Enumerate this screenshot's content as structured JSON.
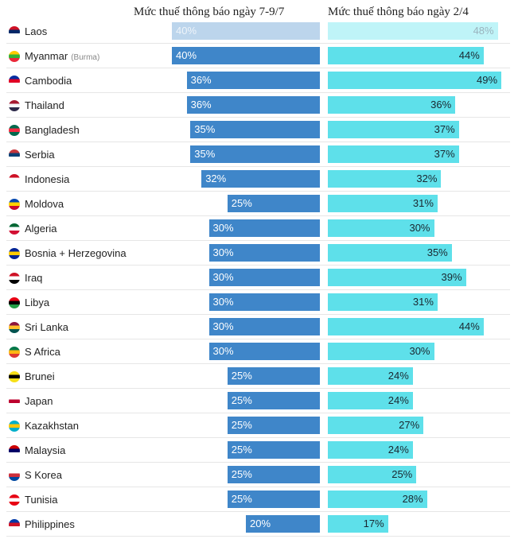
{
  "headers": {
    "left": "Mức thuế thông báo ngày 7-9/7",
    "right": "Mức thuế thông báo ngày 2/4"
  },
  "chart_data": {
    "type": "bar",
    "series": [
      {
        "name": "Mức thuế thông báo ngày 7-9/7",
        "values": [
          40,
          40,
          36,
          36,
          35,
          35,
          32,
          25,
          30,
          30,
          30,
          30,
          30,
          30,
          25,
          25,
          25,
          25,
          25,
          25,
          20
        ]
      },
      {
        "name": "Mức thuế thông báo ngày 2/4",
        "values": [
          48,
          44,
          49,
          36,
          37,
          37,
          32,
          31,
          30,
          35,
          39,
          31,
          44,
          30,
          24,
          24,
          27,
          24,
          25,
          28,
          17
        ]
      }
    ],
    "categories": [
      "Laos",
      "Myanmar",
      "Cambodia",
      "Thailand",
      "Bangladesh",
      "Serbia",
      "Indonesia",
      "Moldova",
      "Algeria",
      "Bosnia + Herzegovina",
      "Iraq",
      "Libya",
      "Sri Lanka",
      "S Africa",
      "Brunei",
      "Japan",
      "Kazakhstan",
      "Malaysia",
      "S Korea",
      "Tunisia",
      "Philippines"
    ],
    "category_notes": {
      "Myanmar": "(Burma)"
    },
    "unit": "%",
    "highlighted_row": "Laos",
    "colors": {
      "left": "#3f86c9",
      "right": "#5ee0ea",
      "left_faded": "#bcd5ec",
      "right_faded": "#bff4f8"
    },
    "flag_colors": {
      "Laos": [
        "#ce1126",
        "#002868",
        "#ffffff"
      ],
      "Myanmar": [
        "#fecb00",
        "#34b233",
        "#ea2839"
      ],
      "Cambodia": [
        "#032ea1",
        "#e00025",
        "#ffffff"
      ],
      "Thailand": [
        "#a51931",
        "#f4f5f8",
        "#2d2a4a"
      ],
      "Bangladesh": [
        "#006a4e",
        "#f42a41",
        "#006a4e"
      ],
      "Serbia": [
        "#c6363c",
        "#0c4076",
        "#ffffff"
      ],
      "Indonesia": [
        "#ce1126",
        "#ffffff",
        "#ffffff"
      ],
      "Moldova": [
        "#0046ae",
        "#ffd200",
        "#cc092f"
      ],
      "Algeria": [
        "#006633",
        "#ffffff",
        "#d21034"
      ],
      "Bosnia + Herzegovina": [
        "#002395",
        "#fecb00",
        "#002395"
      ],
      "Iraq": [
        "#ce1126",
        "#ffffff",
        "#000000"
      ],
      "Libya": [
        "#e70013",
        "#000000",
        "#239e46"
      ],
      "Sri Lanka": [
        "#8d153a",
        "#ffbe29",
        "#00534e"
      ],
      "S Africa": [
        "#007749",
        "#ffb612",
        "#de3831"
      ],
      "Brunei": [
        "#f7e017",
        "#000000",
        "#f7e017"
      ],
      "Japan": [
        "#ffffff",
        "#bc002d",
        "#ffffff"
      ],
      "Kazakhstan": [
        "#00afca",
        "#fec50c",
        "#00afca"
      ],
      "Malaysia": [
        "#cc0001",
        "#010066",
        "#ffffff"
      ],
      "S Korea": [
        "#ffffff",
        "#cd2e3a",
        "#0047a0"
      ],
      "Tunisia": [
        "#e70013",
        "#ffffff",
        "#e70013"
      ],
      "Philippines": [
        "#0038a8",
        "#ce1126",
        "#ffffff"
      ]
    }
  }
}
